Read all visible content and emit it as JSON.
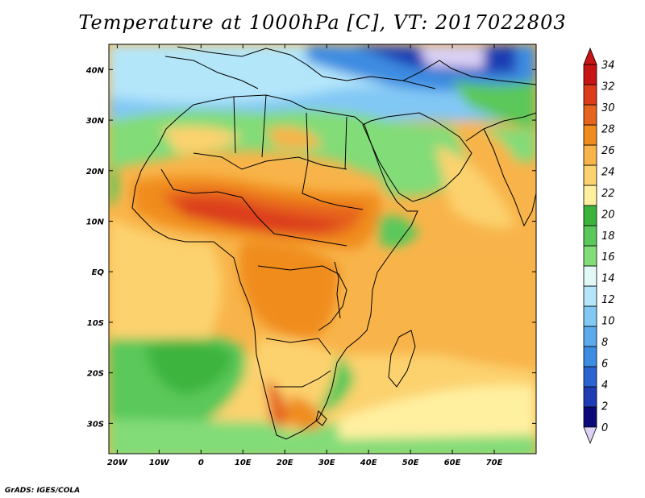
{
  "title": "Temperature at 1000hPa [C], VT: 2017022803",
  "credit": "GrADS: IGES/COLA",
  "map": {
    "lat_labels": [
      {
        "lat": 40,
        "text": "40N"
      },
      {
        "lat": 30,
        "text": "30N"
      },
      {
        "lat": 20,
        "text": "20N"
      },
      {
        "lat": 10,
        "text": "10N"
      },
      {
        "lat": 0,
        "text": "EQ"
      },
      {
        "lat": -10,
        "text": "10S"
      },
      {
        "lat": -20,
        "text": "20S"
      },
      {
        "lat": -30,
        "text": "30S"
      }
    ],
    "lon_labels": [
      {
        "lon": -20,
        "text": "20W"
      },
      {
        "lon": -10,
        "text": "10W"
      },
      {
        "lon": 0,
        "text": "0"
      },
      {
        "lon": 10,
        "text": "10E"
      },
      {
        "lon": 20,
        "text": "20E"
      },
      {
        "lon": 30,
        "text": "30E"
      },
      {
        "lon": 40,
        "text": "40E"
      },
      {
        "lon": 50,
        "text": "50E"
      },
      {
        "lon": 60,
        "text": "60E"
      },
      {
        "lon": 70,
        "text": "70E"
      }
    ],
    "lon_range": [
      -22,
      80
    ],
    "lat_range": [
      -36,
      45
    ]
  },
  "colorbar": {
    "labels": [
      "34",
      "32",
      "30",
      "28",
      "26",
      "24",
      "22",
      "20",
      "18",
      "16",
      "14",
      "12",
      "10",
      "8",
      "6",
      "4",
      "2",
      "0"
    ],
    "colors": [
      "#0a0a78",
      "#1e3cb4",
      "#2b63d2",
      "#3c8ce1",
      "#5aaaec",
      "#82c8f5",
      "#b4e6fa",
      "#e1f8f6",
      "#82dc78",
      "#5ac85a",
      "#3cb43c",
      "#fff0a0",
      "#fcd26e",
      "#f8b44a",
      "#f08c1e",
      "#e6641e",
      "#dc3c1a",
      "#c81414"
    ],
    "under_color": "#dcd2f5",
    "over_color": "#c81414"
  }
}
